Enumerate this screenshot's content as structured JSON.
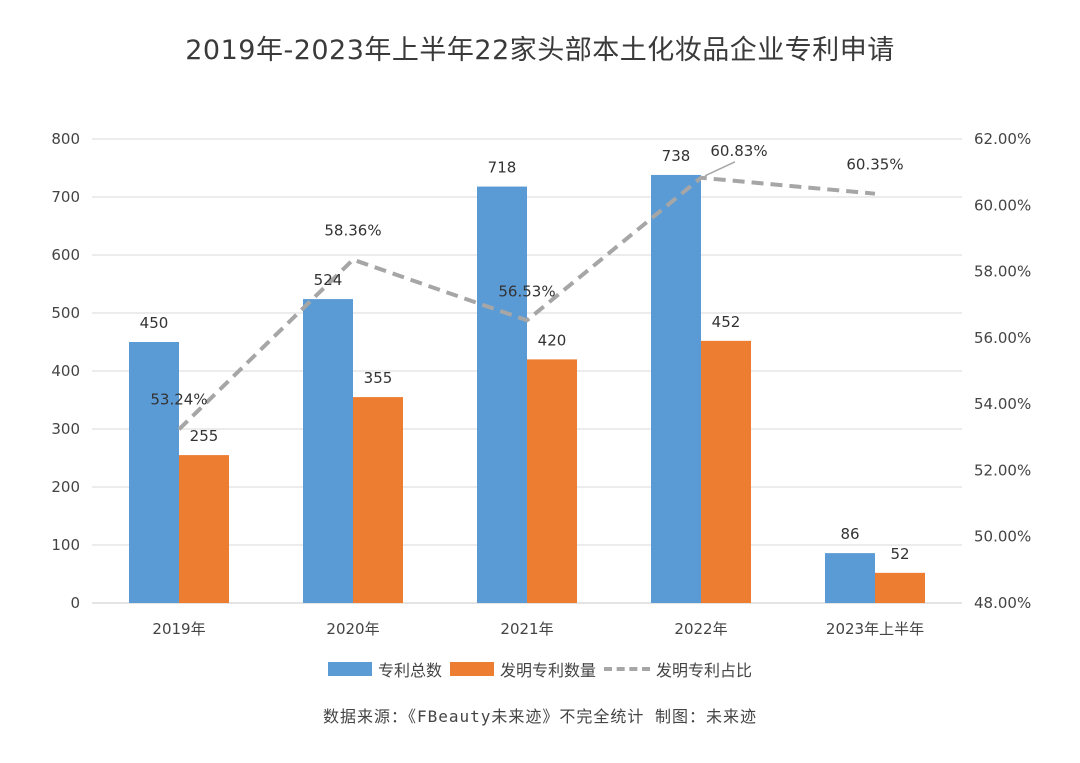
{
  "title": "2019年-2023年上半年22家头部本土化妆品企业专利申请",
  "chart_data": {
    "type": "bar",
    "title": "2019年-2023年上半年22家头部本土化妆品企业专利申请",
    "categories": [
      "2019年",
      "2020年",
      "2021年",
      "2022年",
      "2023年上半年"
    ],
    "series": [
      {
        "name": "专利总数",
        "type": "bar",
        "axis": "left",
        "color": "#5b9bd5",
        "values": [
          450,
          524,
          718,
          738,
          86
        ]
      },
      {
        "name": "发明专利数量",
        "type": "bar",
        "axis": "left",
        "color": "#ed7d31",
        "values": [
          255,
          355,
          420,
          452,
          52
        ]
      },
      {
        "name": "发明专利占比",
        "type": "line",
        "axis": "right",
        "color": "#a6a6a6",
        "style": "dashed",
        "values": [
          53.24,
          58.36,
          56.53,
          60.83,
          60.35
        ],
        "labels": [
          "53.24%",
          "58.36%",
          "56.53%",
          "60.83%",
          "60.35%"
        ]
      }
    ],
    "left_axis": {
      "min": 0,
      "max": 800,
      "step": 100,
      "tick_labels": [
        "0",
        "100",
        "200",
        "300",
        "400",
        "500",
        "600",
        "700",
        "800"
      ]
    },
    "right_axis": {
      "min": 48,
      "max": 62,
      "step": 2,
      "tick_labels": [
        "48.00%",
        "50.00%",
        "52.00%",
        "54.00%",
        "56.00%",
        "58.00%",
        "60.00%",
        "62.00%"
      ]
    },
    "grid": true,
    "legend_position": "bottom"
  },
  "legend": [
    "专利总数",
    "发明专利数量",
    "发明专利占比"
  ],
  "source": "数据来源：《FBeauty未来迹》不完全统计  制图：未来迹"
}
